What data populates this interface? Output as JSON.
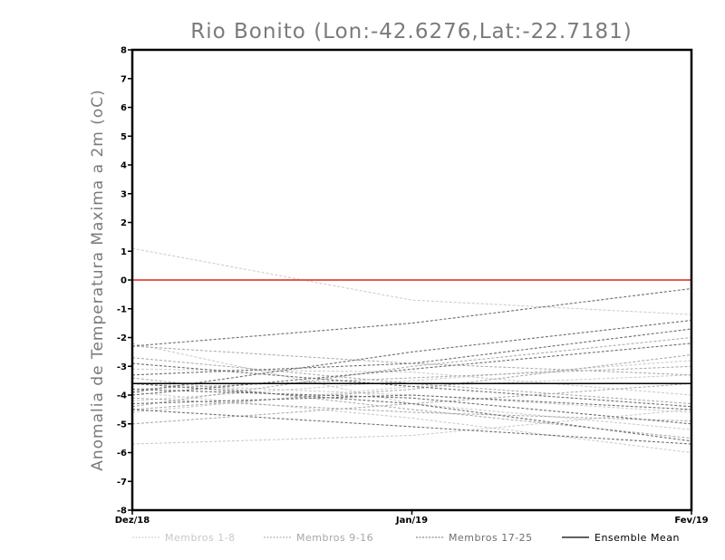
{
  "chart_data": {
    "type": "line",
    "title": "Rio Bonito (Lon:-42.6276,Lat:-22.7181)",
    "ylabel": "Anomalia de Temperatura Maxima a 2m (oC)",
    "xlabel": "",
    "categories": [
      "Dez/18",
      "Jan/19",
      "Fev/19"
    ],
    "ylim": [
      -8,
      8
    ],
    "yticks": [
      "8",
      "7",
      "6",
      "5",
      "4",
      "3",
      "2",
      "1",
      "0",
      "-1",
      "-2",
      "-3",
      "-4",
      "-5",
      "-6",
      "-7",
      "-8"
    ],
    "yticks_values": [
      8,
      7,
      6,
      5,
      4,
      3,
      2,
      1,
      0,
      -1,
      -2,
      -3,
      -4,
      -5,
      -6,
      -7,
      -8
    ],
    "reference_line": {
      "value": 0,
      "color": "#e8413a"
    },
    "legend": [
      "Membros 1-8",
      "Membros 9-16",
      "Membros 17-25",
      "Ensemble Mean"
    ],
    "group_colors": [
      "#c8c8c8",
      "#a6a6a6",
      "#6e6e6e",
      "#000000"
    ],
    "series": [
      {
        "name": "Membro 1",
        "group": 0,
        "values": [
          1.1,
          -0.7,
          -1.2
        ]
      },
      {
        "name": "Membro 2",
        "group": 0,
        "values": [
          -5.7,
          -5.4,
          -4.5
        ]
      },
      {
        "name": "Membro 3",
        "group": 0,
        "values": [
          -2.2,
          -4.3,
          -5.2
        ]
      },
      {
        "name": "Membro 4",
        "group": 0,
        "values": [
          -4.6,
          -3.7,
          -3.3
        ]
      },
      {
        "name": "Membro 5",
        "group": 0,
        "values": [
          -3.1,
          -3.2,
          -4.0
        ]
      },
      {
        "name": "Membro 6",
        "group": 0,
        "values": [
          -3.9,
          -4.8,
          -6.0
        ]
      },
      {
        "name": "Membro 7",
        "group": 0,
        "values": [
          -4.2,
          -3.5,
          -2.8
        ]
      },
      {
        "name": "Membro 8",
        "group": 0,
        "values": [
          -3.6,
          -4.0,
          -4.6
        ]
      },
      {
        "name": "Membro 9",
        "group": 1,
        "values": [
          -2.7,
          -3.6,
          -4.3
        ]
      },
      {
        "name": "Membro 10",
        "group": 1,
        "values": [
          -4.4,
          -3.0,
          -2.0
        ]
      },
      {
        "name": "Membro 11",
        "group": 1,
        "values": [
          -3.4,
          -4.5,
          -5.5
        ]
      },
      {
        "name": "Membro 12",
        "group": 1,
        "values": [
          -5.0,
          -4.3,
          -3.6
        ]
      },
      {
        "name": "Membro 13",
        "group": 1,
        "values": [
          -3.8,
          -3.4,
          -3.0
        ]
      },
      {
        "name": "Membro 14",
        "group": 1,
        "values": [
          -2.3,
          -2.9,
          -3.3
        ]
      },
      {
        "name": "Membro 15",
        "group": 1,
        "values": [
          -4.1,
          -4.6,
          -4.9
        ]
      },
      {
        "name": "Membro 16",
        "group": 1,
        "values": [
          -4.5,
          -3.8,
          -2.6
        ]
      },
      {
        "name": "Membro 17",
        "group": 2,
        "values": [
          -2.3,
          -1.5,
          -0.3
        ]
      },
      {
        "name": "Membro 18",
        "group": 2,
        "values": [
          -3.9,
          -2.5,
          -1.4
        ]
      },
      {
        "name": "Membro 19",
        "group": 2,
        "values": [
          -3.3,
          -2.9,
          -1.7
        ]
      },
      {
        "name": "Membro 20",
        "group": 2,
        "values": [
          -4.3,
          -4.0,
          -4.5
        ]
      },
      {
        "name": "Membro 21",
        "group": 2,
        "values": [
          -3.6,
          -4.3,
          -5.6
        ]
      },
      {
        "name": "Membro 22",
        "group": 2,
        "values": [
          -4.5,
          -5.1,
          -5.7
        ]
      },
      {
        "name": "Membro 23",
        "group": 2,
        "values": [
          -4.0,
          -3.1,
          -2.2
        ]
      },
      {
        "name": "Membro 24",
        "group": 2,
        "values": [
          -2.9,
          -3.7,
          -4.4
        ]
      },
      {
        "name": "Membro 25",
        "group": 2,
        "values": [
          -3.8,
          -4.1,
          -5.0
        ]
      },
      {
        "name": "Ensemble Mean",
        "group": 3,
        "values": [
          -3.6,
          -3.6,
          -3.6
        ]
      }
    ]
  }
}
